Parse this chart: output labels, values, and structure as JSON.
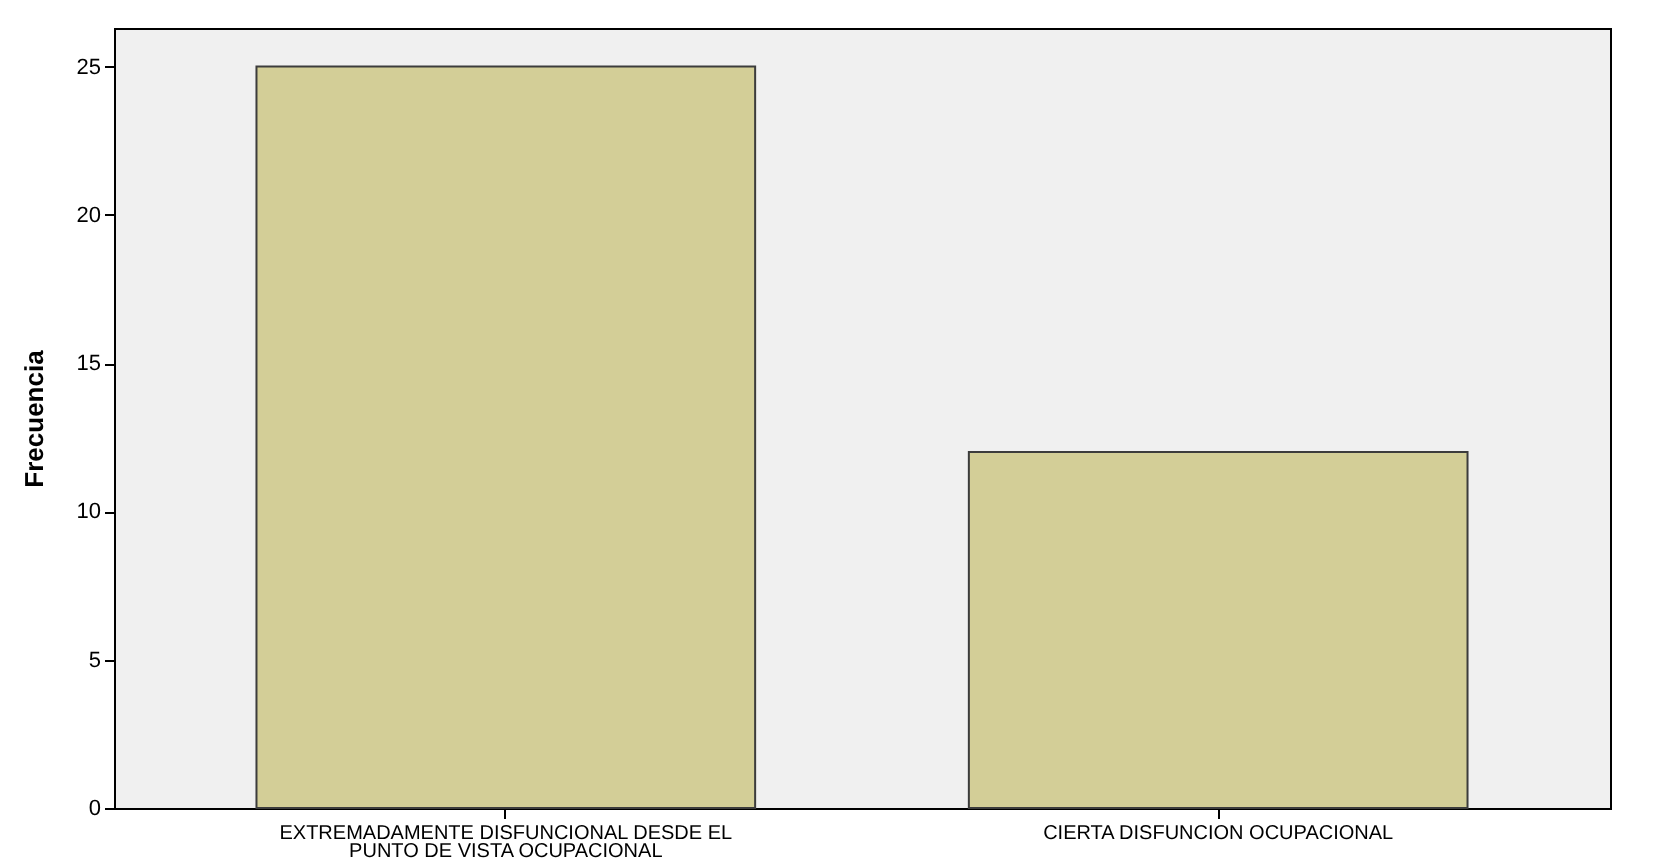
{
  "chart_data": {
    "type": "bar",
    "ylabel": "Frecuencia",
    "categories": [
      "EXTREMADAMENTE DISFUNCIONAL DESDE EL PUNTO DE VISTA OCUPACIONAL",
      "CIERTA DISFUNCION OCUPACIONAL"
    ],
    "values": [
      25,
      12
    ],
    "color": "#d3ce97",
    "ylim": [
      0,
      26.3
    ],
    "yticks": [
      0,
      5,
      10,
      15,
      20,
      25
    ],
    "grid": false
  }
}
